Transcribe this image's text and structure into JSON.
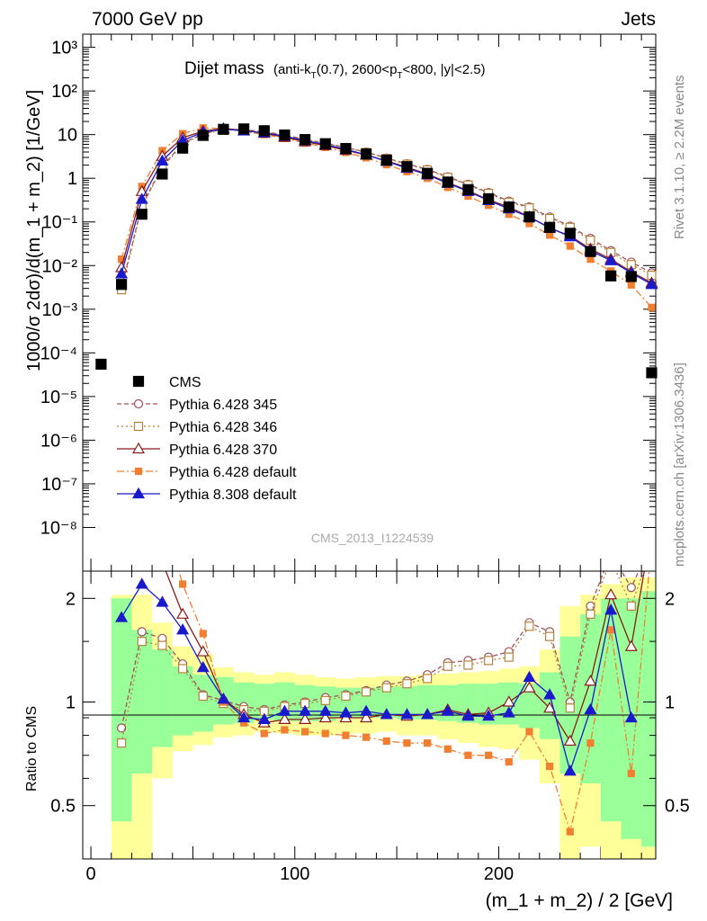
{
  "header": {
    "left": "7000 GeV pp",
    "right": "Jets"
  },
  "title": {
    "main": "Dijet mass",
    "sub_pre": "(anti-k",
    "sub_sub1": "T",
    "sub_mid": "(0.7), 2600<p",
    "sub_sub2": "T",
    "sub_post": "<800, |y|<2.5)"
  },
  "side_labels": {
    "rivet": "Rivet 3.1.10, ≥ 2.2M events",
    "mcplots": "mcplots.cern.ch [arXiv:1306.3436]"
  },
  "watermark": "CMS_2013_I1224539",
  "axes": {
    "ylabel_top": "1000/σ 2dσ)/d(m_1 + m_2) [1/GeV]",
    "ylabel_bottom": "Ratio to CMS",
    "xlabel": "(m_1 + m_2) / 2 [GeV]"
  },
  "colors": {
    "cms": "#000000",
    "p345": "#a0505a",
    "p346": "#b5823c",
    "p370": "#8b1a1a",
    "pdef": "#f07f32",
    "p8": "#1a1acc",
    "band_inner": "#99ff99",
    "band_outer": "#ffff99"
  },
  "legend": [
    {
      "label": "CMS",
      "key": "cms"
    },
    {
      "label": "Pythia 6.428 345",
      "key": "p345"
    },
    {
      "label": "Pythia 6.428 346",
      "key": "p346"
    },
    {
      "label": "Pythia 6.428 370",
      "key": "p370"
    },
    {
      "label": "Pythia 6.428 default",
      "key": "pdef"
    },
    {
      "label": "Pythia 8.308 default",
      "key": "p8"
    }
  ],
  "chart_data": {
    "type": "line",
    "x_ticks": [
      "0",
      "100",
      "200"
    ],
    "y_main_ticks": [
      "10⁻⁸",
      "10⁻⁷",
      "10⁻⁶",
      "10⁻⁵",
      "10⁻⁴",
      "10⁻³",
      "10⁻²",
      "10⁻¹",
      "1",
      "10",
      "10²",
      "10³"
    ],
    "y_ratio_ticks": [
      "0.5",
      "1",
      "2"
    ],
    "xlim": [
      -4,
      277
    ],
    "ylim_main": [
      1e-09,
      2000
    ],
    "ylim_ratio": [
      0.35,
      2.4
    ],
    "y_scale": "log",
    "x": [
      5,
      15,
      25,
      35,
      45,
      55,
      65,
      75,
      85,
      95,
      105,
      115,
      125,
      135,
      145,
      155,
      165,
      175,
      185,
      195,
      205,
      215,
      225,
      235,
      245,
      255,
      265,
      275
    ],
    "series": [
      {
        "key": "cms",
        "name": "CMS",
        "values": [
          5.5e-05,
          0.0037,
          0.15,
          1.25,
          4.9,
          9.6,
          13.2,
          13.5,
          12.3,
          9.8,
          7.7,
          6.2,
          4.8,
          3.6,
          2.6,
          1.85,
          1.3,
          0.82,
          0.55,
          0.34,
          0.22,
          0.13,
          0.075,
          0.055,
          0.021,
          0.0058,
          0.0056,
          3.5e-05
        ]
      },
      {
        "key": "p345",
        "name": "Pythia 6.428 345",
        "values": [
          null,
          0.0031,
          0.24,
          1.85,
          6.3,
          10.5,
          13.4,
          13.0,
          11.7,
          9.8,
          7.8,
          6.4,
          5.1,
          4.0,
          2.9,
          2.15,
          1.6,
          1.08,
          0.73,
          0.47,
          0.3,
          0.22,
          0.13,
          0.08,
          0.042,
          0.022,
          0.012,
          0.0068
        ]
      },
      {
        "key": "p346",
        "name": "Pythia 6.428 346",
        "values": [
          null,
          0.0028,
          0.22,
          1.75,
          6.0,
          10.2,
          13.0,
          12.8,
          11.6,
          9.6,
          7.7,
          6.3,
          5.0,
          3.9,
          2.85,
          2.1,
          1.55,
          1.05,
          0.7,
          0.45,
          0.28,
          0.21,
          0.12,
          0.075,
          0.038,
          0.02,
          0.0105,
          0.006
        ]
      },
      {
        "key": "p370",
        "name": "Pythia 6.428 370",
        "values": [
          null,
          0.009,
          0.5,
          3.2,
          8.5,
          12.0,
          13.8,
          12.5,
          10.8,
          8.7,
          6.9,
          5.6,
          4.4,
          3.4,
          2.5,
          1.78,
          1.25,
          0.8,
          0.52,
          0.32,
          0.22,
          0.13,
          0.072,
          0.048,
          0.024,
          0.014,
          0.0072,
          0.004
        ]
      },
      {
        "key": "pdef",
        "name": "Pythia 6.428 default",
        "values": [
          null,
          0.014,
          0.65,
          4.3,
          10.5,
          14.2,
          13.8,
          11.8,
          10.0,
          8.2,
          6.4,
          5.1,
          3.9,
          2.95,
          2.05,
          1.42,
          1.0,
          0.62,
          0.39,
          0.24,
          0.15,
          0.092,
          0.05,
          0.028,
          0.014,
          0.0075,
          0.0036,
          0.0011
        ]
      },
      {
        "key": "p8",
        "name": "Pythia 8.308 default",
        "values": [
          null,
          0.0065,
          0.33,
          2.5,
          7.3,
          11.4,
          13.4,
          12.2,
          11.0,
          9.2,
          7.3,
          5.9,
          4.6,
          3.45,
          2.45,
          1.7,
          1.2,
          0.77,
          0.5,
          0.31,
          0.2,
          0.13,
          0.074,
          0.046,
          0.022,
          0.013,
          0.0068,
          0.0037
        ]
      }
    ],
    "ratio_series": [
      {
        "key": "p345",
        "values": [
          null,
          0.84,
          1.6,
          1.53,
          1.29,
          1.05,
          1.01,
          0.97,
          0.95,
          0.98,
          1.0,
          1.03,
          1.05,
          1.08,
          1.12,
          1.15,
          1.2,
          1.3,
          1.32,
          1.35,
          1.4,
          1.7,
          1.6,
          1.0,
          1.9,
          2.7,
          2.15,
          2.9
        ]
      },
      {
        "key": "p346",
        "values": [
          null,
          0.76,
          1.5,
          1.46,
          1.25,
          1.04,
          0.99,
          0.95,
          0.94,
          0.97,
          0.99,
          1.01,
          1.04,
          1.07,
          1.1,
          1.13,
          1.17,
          1.27,
          1.28,
          1.32,
          1.35,
          1.66,
          1.55,
          0.96,
          1.8,
          2.6,
          1.9,
          2.8
        ]
      },
      {
        "key": "p370",
        "values": [
          null,
          2.7,
          3.3,
          2.55,
          1.8,
          1.4,
          1.02,
          0.92,
          0.87,
          0.89,
          0.89,
          0.9,
          0.9,
          0.9,
          0.92,
          0.91,
          0.92,
          0.95,
          0.92,
          0.93,
          1.0,
          1.1,
          0.96,
          0.77,
          1.15,
          2.05,
          1.45,
          3.2
        ]
      },
      {
        "key": "pdef",
        "values": [
          null,
          3.6,
          4.5,
          3.5,
          2.2,
          1.58,
          1.0,
          0.87,
          0.81,
          0.83,
          0.82,
          0.81,
          0.8,
          0.79,
          0.77,
          0.76,
          0.76,
          0.73,
          0.7,
          0.7,
          0.67,
          0.82,
          0.65,
          0.42,
          0.76,
          1.62,
          0.62,
          2.9
        ]
      },
      {
        "key": "p8",
        "values": [
          null,
          1.76,
          2.2,
          1.95,
          1.62,
          1.26,
          1.02,
          0.9,
          0.89,
          0.94,
          0.94,
          0.94,
          0.93,
          0.94,
          0.92,
          0.92,
          0.92,
          0.94,
          0.91,
          0.91,
          0.93,
          1.18,
          1.05,
          0.63,
          0.95,
          1.85,
          0.9,
          null
        ]
      }
    ],
    "band_inner": [
      [
        null,
        null
      ],
      [
        0.45,
        2.0
      ],
      [
        0.62,
        1.62
      ],
      [
        0.74,
        1.42
      ],
      [
        0.8,
        1.27
      ],
      [
        0.82,
        1.2
      ],
      [
        0.86,
        1.18
      ],
      [
        0.87,
        1.14
      ],
      [
        0.89,
        1.13
      ],
      [
        0.88,
        1.14
      ],
      [
        0.88,
        1.12
      ],
      [
        0.88,
        1.11
      ],
      [
        0.9,
        1.1
      ],
      [
        0.9,
        1.1
      ],
      [
        0.9,
        1.11
      ],
      [
        0.89,
        1.11
      ],
      [
        0.89,
        1.12
      ],
      [
        0.88,
        1.12
      ],
      [
        0.87,
        1.13
      ],
      [
        0.86,
        1.13
      ],
      [
        0.86,
        1.14
      ],
      [
        0.84,
        1.13
      ],
      [
        0.78,
        1.22
      ],
      [
        0.62,
        1.55
      ],
      [
        0.58,
        1.8
      ],
      [
        0.45,
        2.0
      ],
      [
        0.4,
        2.0
      ],
      [
        0.38,
        2.1
      ]
    ],
    "band_outer": [
      [
        null,
        null
      ],
      [
        0.35,
        2.05
      ],
      [
        0.35,
        2.05
      ],
      [
        0.6,
        1.7
      ],
      [
        0.72,
        1.45
      ],
      [
        0.75,
        1.38
      ],
      [
        0.79,
        1.26
      ],
      [
        0.8,
        1.22
      ],
      [
        0.82,
        1.2
      ],
      [
        0.81,
        1.22
      ],
      [
        0.8,
        1.2
      ],
      [
        0.8,
        1.18
      ],
      [
        0.81,
        1.17
      ],
      [
        0.81,
        1.18
      ],
      [
        0.82,
        1.19
      ],
      [
        0.8,
        1.19
      ],
      [
        0.8,
        1.2
      ],
      [
        0.78,
        1.21
      ],
      [
        0.76,
        1.22
      ],
      [
        0.74,
        1.23
      ],
      [
        0.73,
        1.25
      ],
      [
        0.68,
        1.27
      ],
      [
        0.58,
        1.42
      ],
      [
        0.35,
        1.9
      ],
      [
        0.38,
        2.05
      ],
      [
        0.35,
        2.2
      ],
      [
        0.35,
        2.3
      ],
      [
        0.35,
        2.3
      ]
    ],
    "legend_placement": "bottom-left"
  }
}
